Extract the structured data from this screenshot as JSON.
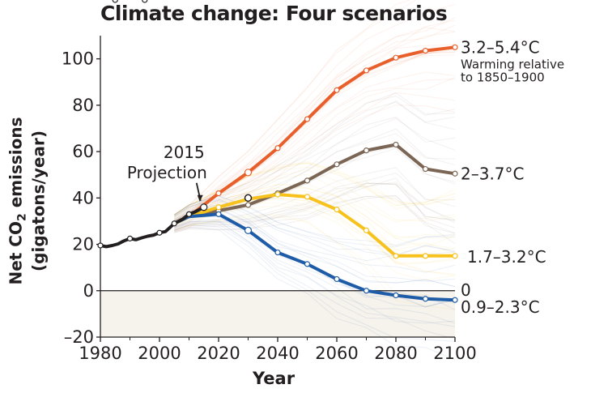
{
  "chart_data": {
    "type": "line",
    "title": "Climate change: Four scenarios",
    "xlabel": "Year",
    "ylabel": "Net CO₂ emissions (gigatons/year)",
    "ylabel_line1_pre": "Net CO",
    "ylabel_line1_sub": "2",
    "ylabel_line1_post": " emissions",
    "ylabel_line2": "(gigatons/year)",
    "xlim": [
      1980,
      2100
    ],
    "ylim": [
      -20,
      110
    ],
    "x_ticks": [
      1980,
      2000,
      2020,
      2040,
      2060,
      2080,
      2100
    ],
    "y_ticks": [
      100,
      80,
      60,
      40,
      20,
      0,
      -20
    ],
    "y_tick_labels": [
      "100",
      "80",
      "60",
      "40",
      "20",
      "0",
      "–20"
    ],
    "historical": {
      "name": "Historical",
      "color": "#231f20",
      "x": [
        1980,
        1982,
        1984,
        1986,
        1988,
        1990,
        1992,
        1994,
        1996,
        1998,
        2000,
        2002,
        2005,
        2008,
        2010,
        2012,
        2015
      ],
      "y": [
        19.5,
        19,
        19.5,
        20.2,
        21.5,
        22.5,
        22,
        22.8,
        23.5,
        24,
        25,
        25.5,
        29,
        31,
        33,
        34,
        36
      ],
      "markers": [
        1980,
        1985,
        1990,
        1995,
        2000,
        2005,
        2010,
        2015
      ]
    },
    "series": [
      {
        "name": "3.2–5.4°C",
        "color": "#e85f2b",
        "x": [
          2005,
          2010,
          2020,
          2030,
          2040,
          2050,
          2060,
          2070,
          2080,
          2090,
          2100
        ],
        "y": [
          29,
          32,
          42,
          51,
          61.5,
          74,
          86.5,
          95,
          100.5,
          103.5,
          105
        ]
      },
      {
        "name": "2–3.7°C",
        "color": "#7b6555",
        "x": [
          2005,
          2010,
          2020,
          2030,
          2040,
          2050,
          2060,
          2070,
          2080,
          2090,
          2100
        ],
        "y": [
          29,
          32,
          34.5,
          37,
          42,
          47.5,
          54.5,
          60.5,
          63,
          52.5,
          50.5
        ]
      },
      {
        "name": "1.7–3.2°C",
        "color": "#f7c21b",
        "x": [
          2005,
          2010,
          2020,
          2030,
          2040,
          2050,
          2060,
          2070,
          2080,
          2090,
          2100
        ],
        "y": [
          29,
          32,
          36,
          39.5,
          41.5,
          40.5,
          35,
          26,
          15,
          15,
          15
        ]
      },
      {
        "name": "0.9–2.3°C",
        "color": "#1f5ca8",
        "x": [
          2005,
          2010,
          2020,
          2030,
          2040,
          2050,
          2060,
          2070,
          2080,
          2090,
          2100
        ],
        "y": [
          29,
          32,
          33,
          26,
          16.5,
          11.5,
          5,
          0,
          -2,
          -3.5,
          -4
        ]
      }
    ],
    "projection_2030_point": {
      "x": 2030,
      "y": 40
    },
    "annotation": {
      "line1": "2015",
      "line2": "Projection",
      "x": 2015,
      "y": 36
    },
    "end_labels": {
      "s1": "3.2–5.4°C",
      "s1_sub1": "Warming relative",
      "s1_sub2": "to 1850–1900",
      "s2": "2–3.7°C",
      "s3": "1.7–3.2°C",
      "s4": "0.9–2.3°C",
      "zero": "0"
    },
    "shaded_negative_region": true,
    "background_spaghetti": true
  }
}
